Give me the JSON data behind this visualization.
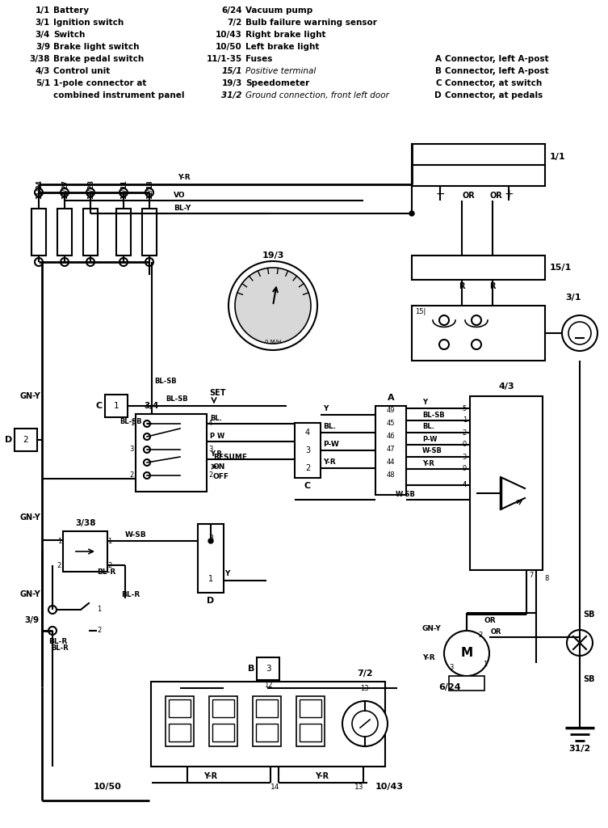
{
  "bg_color": "#ffffff",
  "legend_left": [
    [
      "1/1",
      "Battery"
    ],
    [
      "3/1",
      "Ignition switch"
    ],
    [
      "3/4",
      "Switch"
    ],
    [
      "3/9",
      "Brake light switch"
    ],
    [
      "3/38",
      "Brake pedal switch"
    ],
    [
      "4/3",
      "Control unit"
    ],
    [
      "5/1",
      "1-pole connector at"
    ],
    [
      "",
      "combined instrument panel"
    ]
  ],
  "legend_mid": [
    [
      "6/24",
      "Vacuum pump"
    ],
    [
      "7/2",
      "Bulb failure warning sensor"
    ],
    [
      "10/43",
      "Right brake light"
    ],
    [
      "10/50",
      "Left brake light"
    ],
    [
      "11/1-35",
      "Fuses"
    ],
    [
      "15/1",
      "Positive terminal",
      true
    ],
    [
      "19/3",
      "Speedometer"
    ],
    [
      "31/2",
      "Ground connection, front left door",
      true
    ]
  ],
  "legend_right": [
    [
      "A",
      "Connector, left A-post"
    ],
    [
      "B",
      "Connector, left A-post"
    ],
    [
      "C",
      "Connector, at switch"
    ],
    [
      "D",
      "Connector, at pedals"
    ]
  ]
}
